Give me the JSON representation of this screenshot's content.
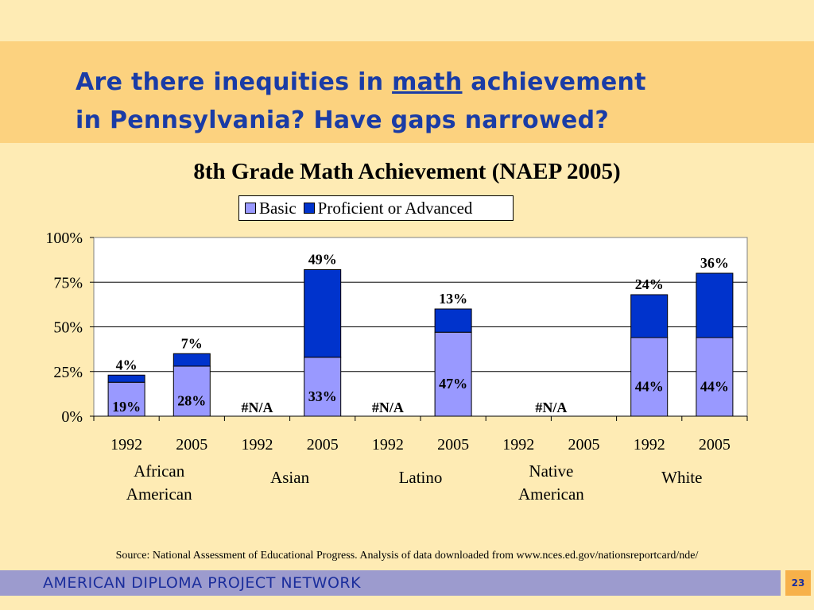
{
  "slide": {
    "title_line1_pre": "Are there inequities in ",
    "title_line1_key": "math",
    "title_line1_post": " achievement",
    "title_line2": "in Pennsylvania?  Have gaps narrowed?"
  },
  "source": "Source: National Assessment of Educational Progress.  Analysis of data downloaded from www.nces.ed.gov/nationsreportcard/nde/",
  "footer": {
    "org": "AMERICAN DIPLOMA PROJECT NETWORK",
    "page": "23"
  },
  "colors": {
    "basic": "#9999FF",
    "proficient": "#0033CC",
    "title": "#1A3CA6",
    "background": "#FEEBB4",
    "title_band": "#FCD27F"
  },
  "chart_data": {
    "type": "bar",
    "stacked": true,
    "title": "8th Grade Math Achievement (NAEP 2005)",
    "ylim": [
      0,
      100
    ],
    "yticks": [
      "0%",
      "25%",
      "50%",
      "75%",
      "100%"
    ],
    "legend_position": "top",
    "grid": true,
    "categories": [
      "1992",
      "2005",
      "1992",
      "2005",
      "1992",
      "2005",
      "1992",
      "2005",
      "1992",
      "2005"
    ],
    "groups": [
      {
        "label_lines": [
          "African",
          "American"
        ]
      },
      {
        "label_lines": [
          "Asian"
        ]
      },
      {
        "label_lines": [
          "Latino"
        ]
      },
      {
        "label_lines": [
          "Native",
          "American"
        ]
      },
      {
        "label_lines": [
          "White"
        ]
      }
    ],
    "series": [
      {
        "name": "Basic",
        "color": "#9999FF",
        "values": [
          19,
          28,
          null,
          33,
          null,
          47,
          null,
          null,
          44,
          44
        ]
      },
      {
        "name": "Proficient or Advanced",
        "color": "#0033CC",
        "values": [
          4,
          7,
          null,
          49,
          null,
          13,
          null,
          null,
          24,
          36
        ]
      }
    ],
    "basic_labels": [
      "19%",
      "28%",
      "#N/A",
      "33%",
      "#N/A",
      "47%",
      "#N/A",
      "",
      "44%",
      "44%"
    ],
    "proficient_labels": [
      "4%",
      "7%",
      "",
      "49%",
      "",
      "13%",
      "",
      "",
      "24%",
      "36%"
    ]
  }
}
